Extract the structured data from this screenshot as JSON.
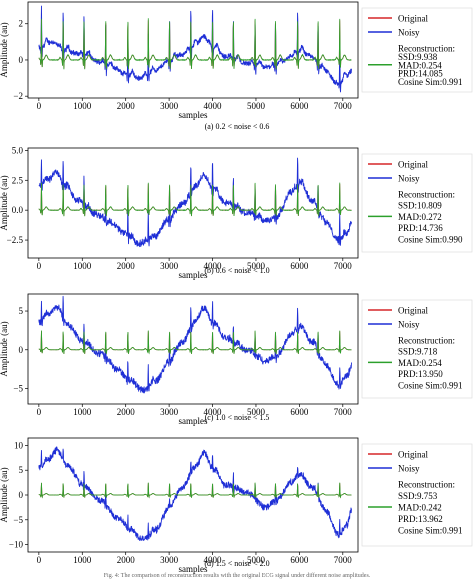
{
  "figure": {
    "caption": "Fig. 4: The comparison of reconstruction results with the original ECG signal under different noise amplitudes."
  },
  "legend_labels": {
    "original": "Original",
    "noisy": "Noisy",
    "reconstruction": "Reconstruction:"
  },
  "colors": {
    "original": "#d62728",
    "noisy": "#1f2fd6",
    "reconstruction": "#2ca02c"
  },
  "chart_data": [
    {
      "type": "line",
      "subcaption": "(a) 0.2 < noise < 0.6",
      "xlabel": "samples",
      "ylabel": "Amplitude (au)",
      "xlim": [
        -250,
        7350
      ],
      "ylim": [
        -2.1,
        3.2
      ],
      "xticks": [
        0,
        1000,
        2000,
        3000,
        4000,
        5000,
        6000,
        7000
      ],
      "yticks": [
        -2,
        0,
        2
      ],
      "ytick_labels": [
        "−2",
        "0",
        "2"
      ],
      "x_end": 7200,
      "baseline_wander": [
        [
          0,
          0.6
        ],
        [
          300,
          1.0
        ],
        [
          600,
          0.5
        ],
        [
          1000,
          0.3
        ],
        [
          1400,
          -0.1
        ],
        [
          1700,
          -0.4
        ],
        [
          2000,
          -0.8
        ],
        [
          2300,
          -1.0
        ],
        [
          2600,
          -0.7
        ],
        [
          3000,
          -0.1
        ],
        [
          3300,
          0.3
        ],
        [
          3600,
          0.8
        ],
        [
          3800,
          1.3
        ],
        [
          4000,
          0.7
        ],
        [
          4300,
          0.2
        ],
        [
          4800,
          -0.2
        ],
        [
          5200,
          -0.4
        ],
        [
          5500,
          -0.3
        ],
        [
          5800,
          0.2
        ],
        [
          6000,
          0.5
        ],
        [
          6200,
          0.3
        ],
        [
          6600,
          -0.6
        ],
        [
          6900,
          -1.4
        ],
        [
          7100,
          -0.9
        ],
        [
          7200,
          -0.6
        ]
      ],
      "beats": [
        60,
        560,
        1040,
        1540,
        2050,
        2520,
        3010,
        3500,
        4000,
        4480,
        4980,
        5450,
        5960,
        6430,
        6930
      ],
      "r_peak_amplitude": 2.3,
      "noise_level": 0.12,
      "series": [
        {
          "name": "Original",
          "color": "#d62728"
        },
        {
          "name": "Noisy",
          "color": "#1f2fd6"
        },
        {
          "name": "Reconstruction",
          "color": "#2ca02c"
        }
      ],
      "metrics": [
        "SSD:9.938",
        "MAD:0.254",
        "PRD:14.085",
        "Cosine Sim:0.991"
      ]
    },
    {
      "type": "line",
      "subcaption": "(b) 0.6 < noise < 1.0",
      "xlabel": "samples",
      "ylabel": "Amplitude (au)",
      "xlim": [
        -250,
        7350
      ],
      "ylim": [
        -4.0,
        5.2
      ],
      "xticks": [
        0,
        1000,
        2000,
        3000,
        4000,
        5000,
        6000,
        7000
      ],
      "yticks": [
        -2.5,
        0.0,
        2.5,
        5.0
      ],
      "ytick_labels": [
        "−2.5",
        "0.0",
        "2.5",
        "5.0"
      ],
      "x_end": 7200,
      "baseline_wander": [
        [
          0,
          2.0
        ],
        [
          200,
          2.5
        ],
        [
          400,
          3.2
        ],
        [
          600,
          2.0
        ],
        [
          900,
          0.8
        ],
        [
          1300,
          -0.3
        ],
        [
          1700,
          -1.2
        ],
        [
          2000,
          -2.0
        ],
        [
          2300,
          -2.8
        ],
        [
          2600,
          -2.4
        ],
        [
          3000,
          -0.8
        ],
        [
          3300,
          0.5
        ],
        [
          3600,
          1.8
        ],
        [
          3800,
          3.0
        ],
        [
          4000,
          1.8
        ],
        [
          4300,
          0.6
        ],
        [
          4800,
          -0.2
        ],
        [
          5200,
          -0.9
        ],
        [
          5500,
          -0.6
        ],
        [
          5800,
          1.5
        ],
        [
          6000,
          2.3
        ],
        [
          6300,
          0.8
        ],
        [
          6600,
          -1.0
        ],
        [
          6900,
          -2.5
        ],
        [
          7100,
          -2.0
        ],
        [
          7200,
          -0.9
        ]
      ],
      "beats": [
        60,
        560,
        1040,
        1540,
        2050,
        2520,
        3010,
        3500,
        4000,
        4480,
        4980,
        5450,
        5960,
        6430,
        6930
      ],
      "r_peak_amplitude": 2.3,
      "noise_level": 0.25,
      "series": [
        {
          "name": "Original",
          "color": "#d62728"
        },
        {
          "name": "Noisy",
          "color": "#1f2fd6"
        },
        {
          "name": "Reconstruction",
          "color": "#2ca02c"
        }
      ],
      "metrics": [
        "SSD:10.809",
        "MAD:0.272",
        "PRD:14.736",
        "Cosine Sim:0.990"
      ]
    },
    {
      "type": "line",
      "subcaption": "(c) 1.0 < noise < 1.5",
      "xlabel": "samples",
      "ylabel": "Amplitude (au)",
      "xlim": [
        -250,
        7350
      ],
      "ylim": [
        -7.0,
        7.2
      ],
      "xticks": [
        0,
        1000,
        2000,
        3000,
        4000,
        5000,
        6000,
        7000
      ],
      "yticks": [
        -5,
        0,
        5
      ],
      "ytick_labels": [
        "−5",
        "0",
        "5"
      ],
      "x_end": 7200,
      "baseline_wander": [
        [
          0,
          3.5
        ],
        [
          200,
          4.5
        ],
        [
          400,
          5.5
        ],
        [
          700,
          3.0
        ],
        [
          1000,
          1.0
        ],
        [
          1400,
          -0.5
        ],
        [
          1800,
          -2.5
        ],
        [
          2100,
          -4.0
        ],
        [
          2400,
          -5.2
        ],
        [
          2700,
          -4.0
        ],
        [
          3000,
          -1.5
        ],
        [
          3300,
          1.0
        ],
        [
          3600,
          3.5
        ],
        [
          3800,
          5.5
        ],
        [
          4000,
          3.5
        ],
        [
          4300,
          1.5
        ],
        [
          4800,
          0.0
        ],
        [
          5200,
          -1.5
        ],
        [
          5500,
          -0.8
        ],
        [
          5800,
          2.0
        ],
        [
          6000,
          3.0
        ],
        [
          6300,
          1.0
        ],
        [
          6600,
          -2.0
        ],
        [
          6900,
          -4.5
        ],
        [
          7100,
          -3.5
        ],
        [
          7200,
          -2.0
        ]
      ],
      "beats": [
        60,
        560,
        1040,
        1540,
        2050,
        2520,
        3010,
        3500,
        4000,
        4480,
        4980,
        5450,
        5960,
        6430,
        6930
      ],
      "r_peak_amplitude": 2.5,
      "noise_level": 0.4,
      "series": [
        {
          "name": "Original",
          "color": "#d62728"
        },
        {
          "name": "Noisy",
          "color": "#1f2fd6"
        },
        {
          "name": "Reconstruction",
          "color": "#2ca02c"
        }
      ],
      "metrics": [
        "SSD:9.718",
        "MAD:0.254",
        "PRD:13.950",
        "Cosine Sim:0.991"
      ]
    },
    {
      "type": "line",
      "subcaption": "(d) 1.5 < noise < 2.0",
      "xlabel": "samples",
      "ylabel": "Amplitude (au)",
      "xlim": [
        -250,
        7350
      ],
      "ylim": [
        -11.5,
        11.5
      ],
      "xticks": [
        0,
        1000,
        2000,
        3000,
        4000,
        5000,
        6000,
        7000
      ],
      "yticks": [
        -10,
        -5,
        0,
        5,
        10
      ],
      "ytick_labels": [
        "−10",
        "−5",
        "0",
        "5",
        "10"
      ],
      "x_end": 7200,
      "baseline_wander": [
        [
          0,
          5.5
        ],
        [
          200,
          7.0
        ],
        [
          400,
          9.0
        ],
        [
          700,
          5.5
        ],
        [
          1000,
          2.0
        ],
        [
          1400,
          -1.0
        ],
        [
          1800,
          -4.5
        ],
        [
          2100,
          -7.0
        ],
        [
          2400,
          -9.0
        ],
        [
          2700,
          -7.0
        ],
        [
          3000,
          -2.5
        ],
        [
          3300,
          1.5
        ],
        [
          3600,
          5.5
        ],
        [
          3800,
          8.5
        ],
        [
          4000,
          5.5
        ],
        [
          4300,
          2.0
        ],
        [
          4800,
          0.5
        ],
        [
          5200,
          -2.5
        ],
        [
          5500,
          -1.0
        ],
        [
          5800,
          2.5
        ],
        [
          6000,
          4.0
        ],
        [
          6300,
          1.5
        ],
        [
          6600,
          -3.0
        ],
        [
          6900,
          -8.0
        ],
        [
          7100,
          -6.0
        ],
        [
          7200,
          -3.0
        ]
      ],
      "beats": [
        60,
        560,
        1040,
        1540,
        2050,
        2520,
        3010,
        3500,
        4000,
        4480,
        4980,
        5450,
        5960,
        6430,
        6930
      ],
      "r_peak_amplitude": 2.5,
      "noise_level": 0.6,
      "series": [
        {
          "name": "Original",
          "color": "#d62728"
        },
        {
          "name": "Noisy",
          "color": "#1f2fd6"
        },
        {
          "name": "Reconstruction",
          "color": "#2ca02c"
        }
      ],
      "metrics": [
        "SSD:9.753",
        "MAD:0.242",
        "PRD:13.962",
        "Cosine Sim:0.991"
      ]
    }
  ]
}
